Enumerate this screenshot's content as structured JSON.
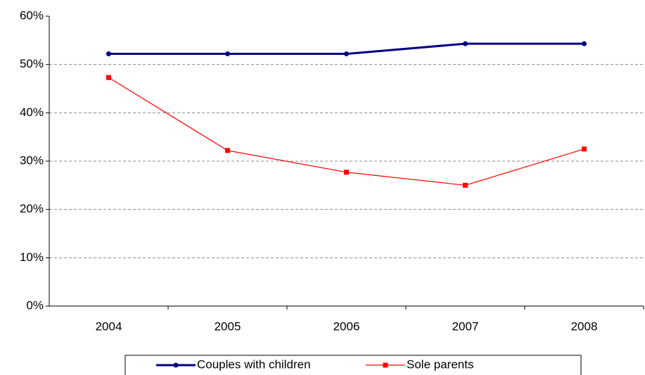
{
  "chart_data": {
    "type": "line",
    "categories": [
      "2004",
      "2005",
      "2006",
      "2007",
      "2008"
    ],
    "series": [
      {
        "name": "Couples with children",
        "color": "#000080",
        "marker": "circle",
        "width": 3,
        "values": [
          52.2,
          52.2,
          52.2,
          54.3,
          54.3
        ]
      },
      {
        "name": "Sole parents",
        "color": "#ff0000",
        "marker": "square",
        "width": 1.2,
        "values": [
          47.3,
          32.2,
          27.7,
          25.0,
          32.5
        ]
      }
    ],
    "ylim": [
      0,
      60
    ],
    "yticks": [
      {
        "value": 0,
        "label": "0%"
      },
      {
        "value": 10,
        "label": "10%"
      },
      {
        "value": 20,
        "label": "20%"
      },
      {
        "value": 30,
        "label": "30%"
      },
      {
        "value": 40,
        "label": "40%"
      },
      {
        "value": 50,
        "label": "50%"
      },
      {
        "value": 60,
        "label": "60%"
      }
    ],
    "grid": true,
    "legend": "bottom"
  }
}
